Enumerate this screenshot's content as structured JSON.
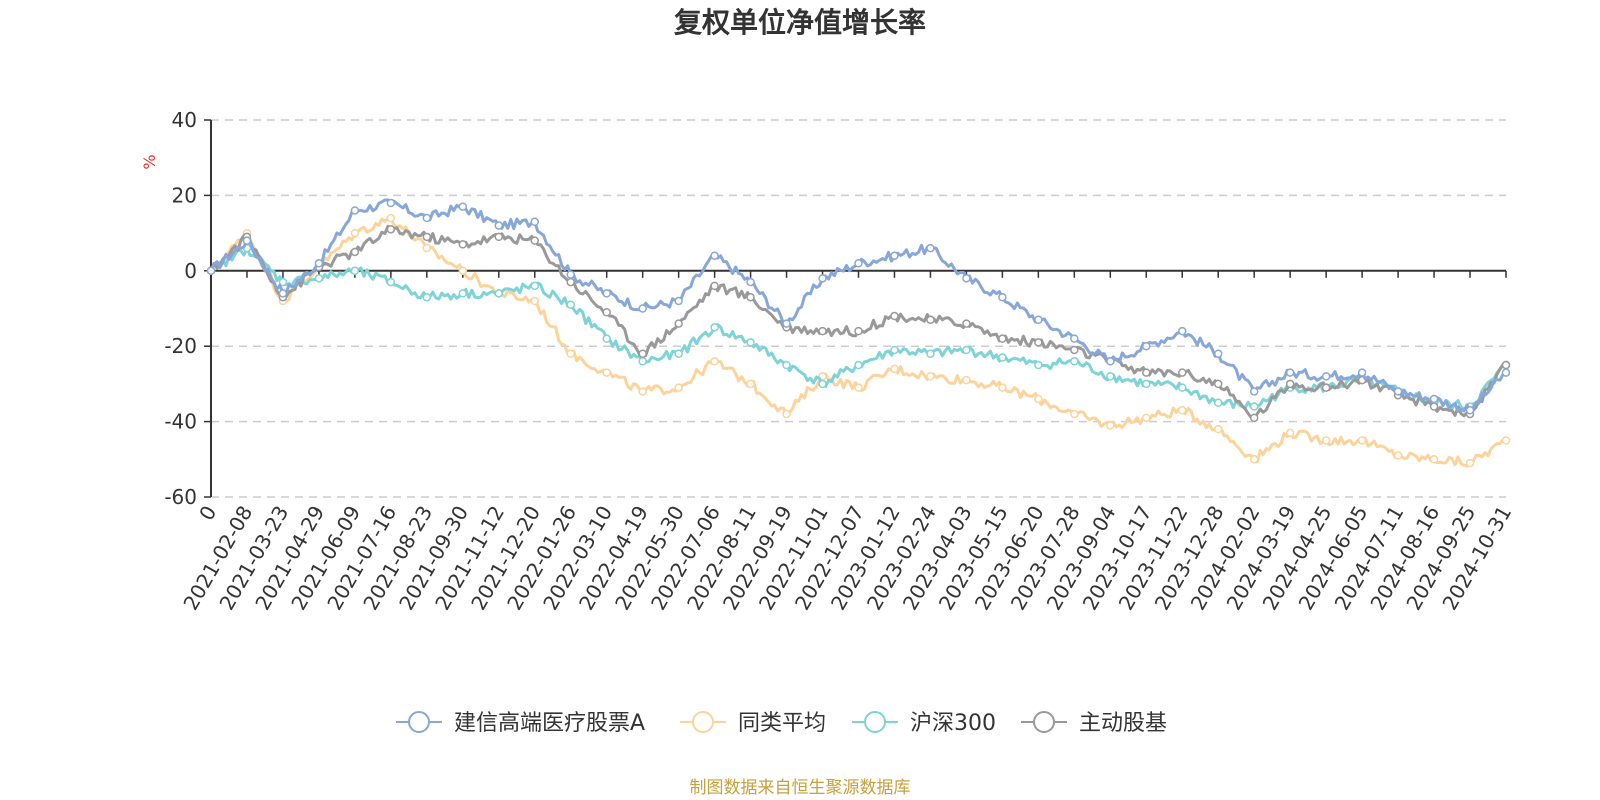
{
  "chart_data": {
    "type": "line",
    "title": "复权单位净值增长率",
    "ylabel": "%",
    "ylim": [
      -60,
      40
    ],
    "yticks": [
      40,
      20,
      0,
      -20,
      -40,
      -60
    ],
    "grid": true,
    "legend_position": "bottom-center",
    "x_ticks": [
      "0",
      "2021-02-08",
      "2021-03-23",
      "2021-04-29",
      "2021-06-09",
      "2021-07-16",
      "2021-08-23",
      "2021-09-30",
      "2021-11-12",
      "2021-12-20",
      "2022-01-26",
      "2022-03-10",
      "2022-04-19",
      "2022-05-30",
      "2022-07-06",
      "2022-08-11",
      "2022-09-19",
      "2022-11-01",
      "2022-12-07",
      "2023-01-12",
      "2023-02-24",
      "2023-04-03",
      "2023-05-15",
      "2023-06-20",
      "2023-07-28",
      "2023-09-04",
      "2023-10-17",
      "2023-11-22",
      "2023-12-28",
      "2024-02-02",
      "2024-03-19",
      "2024-04-25",
      "2024-06-05",
      "2024-07-11",
      "2024-08-16",
      "2024-09-25",
      "2024-10-31"
    ],
    "series": [
      {
        "name": "建信高端医疗股票A",
        "color": "#87a7d8",
        "values": [
          0,
          8,
          -6,
          2,
          16,
          18,
          14,
          17,
          12,
          13,
          -1,
          -6,
          -10,
          -8,
          4,
          -3,
          -14,
          -2,
          2,
          4,
          6,
          -2,
          -7,
          -13,
          -18,
          -24,
          -20,
          -16,
          -22,
          -32,
          -27,
          -28,
          -27,
          -32,
          -34,
          -37,
          -27
        ]
      },
      {
        "name": "同类平均",
        "color": "#fcd39a",
        "values": [
          0,
          10,
          -8,
          1,
          10,
          14,
          6,
          0,
          -6,
          -8,
          -22,
          -27,
          -32,
          -31,
          -24,
          -30,
          -38,
          -28,
          -31,
          -26,
          -28,
          -29,
          -31,
          -34,
          -38,
          -41,
          -39,
          -37,
          -42,
          -50,
          -43,
          -45,
          -45,
          -49,
          -50,
          -51,
          -45
        ]
      },
      {
        "name": "沪深300",
        "color": "#7dd3d6",
        "values": [
          0,
          6,
          -3,
          -2,
          0,
          -3,
          -7,
          -6,
          -6,
          -4,
          -9,
          -18,
          -24,
          -22,
          -15,
          -19,
          -25,
          -30,
          -25,
          -21,
          -22,
          -21,
          -23,
          -25,
          -24,
          -28,
          -30,
          -31,
          -35,
          -36,
          -31,
          -31,
          -29,
          -32,
          -35,
          -36,
          -25
        ]
      },
      {
        "name": "主动股基",
        "color": "#999999",
        "values": [
          0,
          9,
          -7,
          1,
          5,
          11,
          9,
          7,
          9,
          8,
          -3,
          -11,
          -22,
          -14,
          -4,
          -7,
          -15,
          -16,
          -16,
          -12,
          -13,
          -14,
          -18,
          -19,
          -21,
          -24,
          -27,
          -27,
          -30,
          -39,
          -30,
          -31,
          -29,
          -33,
          -36,
          -38,
          -25
        ]
      }
    ]
  },
  "source_note": "制图数据来自恒生聚源数据库",
  "colors": {
    "unit_label": "#e8312b",
    "source_note": "#c8a03c"
  }
}
